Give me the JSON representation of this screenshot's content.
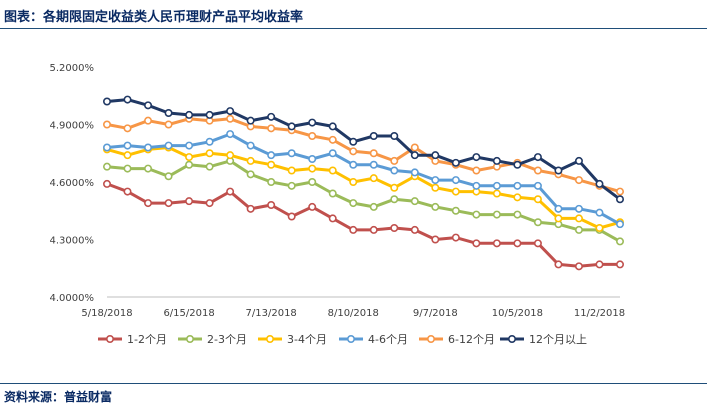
{
  "figure": {
    "title": "图表：各期限固定收益类人民币理财产品平均收益率",
    "source": "资料来源：普益财富"
  },
  "chart_data": {
    "type": "line",
    "title": "",
    "xlabel": "",
    "ylabel": "",
    "x_start": "2018-05-18",
    "x_step_days": 7,
    "x": [
      "5/18/2018",
      "5/25/2018",
      "6/1/2018",
      "6/8/2018",
      "6/15/2018",
      "6/22/2018",
      "6/29/2018",
      "7/6/2018",
      "7/13/2018",
      "7/20/2018",
      "7/27/2018",
      "8/3/2018",
      "8/10/2018",
      "8/17/2018",
      "8/24/2018",
      "8/31/2018",
      "9/7/2018",
      "9/14/2018",
      "9/21/2018",
      "9/28/2018",
      "10/5/2018",
      "10/12/2018",
      "10/19/2018",
      "10/26/2018",
      "11/2/2018",
      "11/9/2018"
    ],
    "x_tick_labels": [
      "5/18/2018",
      "6/15/2018",
      "7/13/2018",
      "8/10/2018",
      "9/7/2018",
      "10/5/2018",
      "11/2/2018"
    ],
    "y_tick_labels": [
      "4.0000%",
      "4.3000%",
      "4.6000%",
      "4.9000%",
      "5.2000%"
    ],
    "ylim": [
      4.0,
      5.2
    ],
    "y_step": 0.3,
    "grid": false,
    "legend_position": "bottom",
    "series": [
      {
        "name": "1-2个月",
        "color": "#c0504d",
        "values": [
          4.59,
          4.55,
          4.49,
          4.49,
          4.5,
          4.49,
          4.55,
          4.46,
          4.48,
          4.42,
          4.47,
          4.41,
          4.35,
          4.35,
          4.36,
          4.35,
          4.3,
          4.31,
          4.28,
          4.28,
          4.28,
          4.28,
          4.17,
          4.16,
          4.17,
          4.17
        ]
      },
      {
        "name": "2-3个月",
        "color": "#9bbb59",
        "values": [
          4.68,
          4.67,
          4.67,
          4.63,
          4.69,
          4.68,
          4.71,
          4.64,
          4.6,
          4.58,
          4.6,
          4.54,
          4.49,
          4.47,
          4.51,
          4.5,
          4.47,
          4.45,
          4.43,
          4.43,
          4.43,
          4.39,
          4.38,
          4.35,
          4.35,
          4.29
        ]
      },
      {
        "name": "3-4个月",
        "color": "#ffc000",
        "values": [
          4.77,
          4.74,
          4.77,
          4.78,
          4.73,
          4.75,
          4.74,
          4.71,
          4.69,
          4.66,
          4.67,
          4.66,
          4.6,
          4.62,
          4.57,
          4.63,
          4.57,
          4.55,
          4.55,
          4.54,
          4.52,
          4.51,
          4.41,
          4.41,
          4.36,
          4.39
        ]
      },
      {
        "name": "4-6个月",
        "color": "#5b9bd5",
        "values": [
          4.78,
          4.79,
          4.78,
          4.79,
          4.79,
          4.81,
          4.85,
          4.79,
          4.74,
          4.75,
          4.72,
          4.75,
          4.69,
          4.69,
          4.66,
          4.65,
          4.61,
          4.61,
          4.58,
          4.58,
          4.58,
          4.58,
          4.46,
          4.46,
          4.44,
          4.38
        ]
      },
      {
        "name": "6-12个月",
        "color": "#f79646",
        "values": [
          4.9,
          4.88,
          4.92,
          4.9,
          4.93,
          4.92,
          4.93,
          4.89,
          4.88,
          4.87,
          4.84,
          4.82,
          4.76,
          4.75,
          4.71,
          4.78,
          4.71,
          4.69,
          4.66,
          4.68,
          4.7,
          4.66,
          4.64,
          4.61,
          4.58,
          4.55
        ]
      },
      {
        "name": "12个月以上",
        "color": "#203864",
        "values": [
          5.02,
          5.03,
          5.0,
          4.96,
          4.95,
          4.95,
          4.97,
          4.92,
          4.94,
          4.89,
          4.91,
          4.89,
          4.81,
          4.84,
          4.84,
          4.74,
          4.74,
          4.7,
          4.73,
          4.71,
          4.69,
          4.73,
          4.66,
          4.71,
          4.59,
          4.51
        ]
      }
    ]
  }
}
